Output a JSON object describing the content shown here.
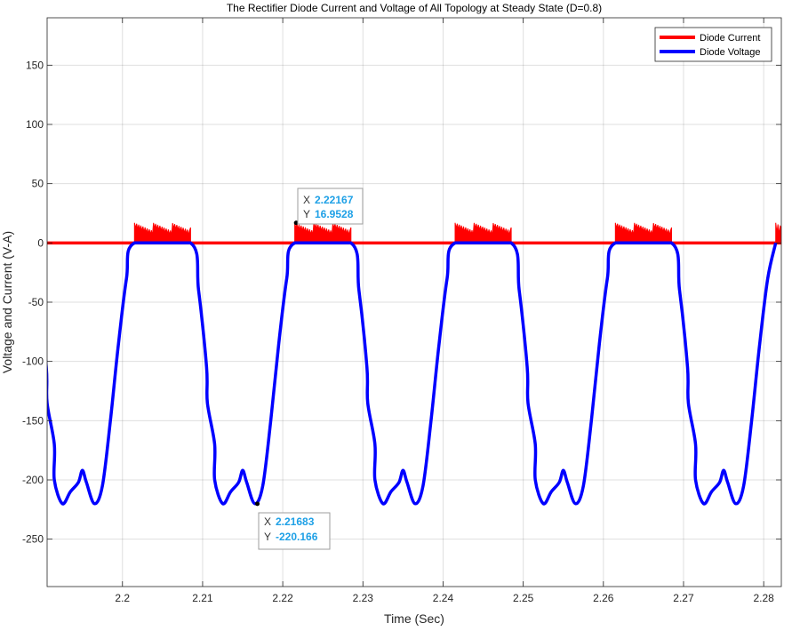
{
  "chart_data": {
    "type": "line",
    "title": "The Rectifier Diode Current and Voltage of All Topology at Steady State (D=0.8)",
    "xlabel": "Time (Sec)",
    "ylabel": "Voltage and Current (V-A)",
    "xlim": [
      2.1906,
      2.2822
    ],
    "ylim": [
      -290,
      190
    ],
    "xticks": [
      2.2,
      2.21,
      2.22,
      2.23,
      2.24,
      2.25,
      2.26,
      2.27,
      2.28
    ],
    "xtick_labels": [
      "2.2",
      "2.21",
      "2.22",
      "2.23",
      "2.24",
      "2.25",
      "2.26",
      "2.27",
      "2.28"
    ],
    "yticks": [
      -250,
      -200,
      -150,
      -100,
      -50,
      0,
      50,
      100,
      150
    ],
    "ytick_labels": [
      "-250",
      "-200",
      "-150",
      "-100",
      "-50",
      "0",
      "50",
      "100",
      "150"
    ],
    "grid": true,
    "legend_position": "top-right",
    "period": 0.02,
    "series": [
      {
        "name": "Diode Current",
        "color": "#ff0000",
        "conduction_windows": [
          [
            2.2015,
            2.2085
          ],
          [
            2.2215,
            2.2285
          ],
          [
            2.2415,
            2.2485
          ],
          [
            2.2615,
            2.2685
          ],
          [
            2.2815,
            2.2822
          ]
        ],
        "baseline": 0,
        "peak_range": [
          10,
          17
        ]
      },
      {
        "name": "Diode Voltage",
        "color": "#0000ff",
        "x": [
          2.1906,
          2.1915,
          2.1925,
          2.1935,
          2.1945,
          2.195,
          2.1955,
          2.1965,
          2.1975,
          2.1985,
          2.1995,
          2.2005,
          2.2015,
          2.2085,
          2.2095,
          2.2105,
          2.2115
        ],
        "y": [
          -135,
          -200,
          -220,
          -210,
          -202,
          -192,
          -202,
          -220,
          -205,
          -150,
          -85,
          -30,
          0,
          0,
          -40,
          -105,
          -170
        ],
        "repeats_every": 0.02
      }
    ],
    "annotations": [
      {
        "x_label": "X",
        "x_value": "2.22167",
        "y_label": "Y",
        "y_value": "16.9528",
        "point": [
          2.22167,
          16.9528
        ]
      },
      {
        "x_label": "X",
        "x_value": "2.21683",
        "y_label": "Y",
        "y_value": "-220.166",
        "point": [
          2.21683,
          -220.166
        ]
      }
    ]
  }
}
